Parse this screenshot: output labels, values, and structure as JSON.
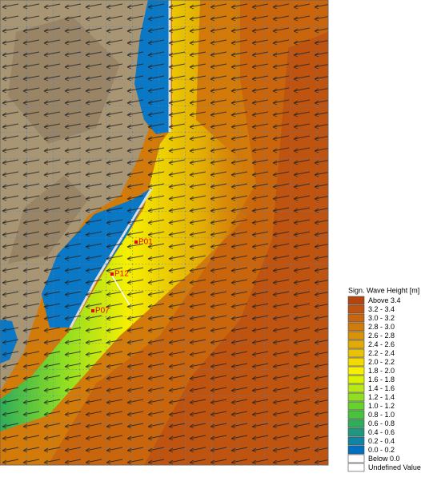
{
  "legend": {
    "title": "Sign. Wave Height [m]",
    "entries": [
      {
        "label": "Above 3.4",
        "color": "#b5440f"
      },
      {
        "label": "3.2 - 3.4",
        "color": "#bf5410"
      },
      {
        "label": "3.0 - 3.2",
        "color": "#c9660d"
      },
      {
        "label": "2.8 - 3.0",
        "color": "#d27a0a"
      },
      {
        "label": "2.6 - 2.8",
        "color": "#da9207"
      },
      {
        "label": "2.4 - 2.6",
        "color": "#e2aa05"
      },
      {
        "label": "2.2 - 2.4",
        "color": "#eac203"
      },
      {
        "label": "2.0 - 2.2",
        "color": "#f2da01"
      },
      {
        "label": "1.8 - 2.0",
        "color": "#f6ef00"
      },
      {
        "label": "1.6 - 1.8",
        "color": "#d9f200"
      },
      {
        "label": "1.4 - 1.6",
        "color": "#b6ea12"
      },
      {
        "label": "1.2 - 1.4",
        "color": "#8fde22"
      },
      {
        "label": "1.0 - 1.2",
        "color": "#66d22c"
      },
      {
        "label": "0.8 - 1.0",
        "color": "#45c43c"
      },
      {
        "label": "0.6 - 0.8",
        "color": "#2eae58"
      },
      {
        "label": "0.4 - 0.6",
        "color": "#1e977e"
      },
      {
        "label": "0.2 - 0.4",
        "color": "#0f84a4"
      },
      {
        "label": "0.0 - 0.2",
        "color": "#0070c0"
      },
      {
        "label": "Below 0.0",
        "color": "#ffffff"
      },
      {
        "label": "Undefined Value",
        "color": "#ffffff"
      }
    ]
  },
  "points": [
    {
      "label": "P01"
    },
    {
      "label": "P12"
    },
    {
      "label": "P07"
    }
  ]
}
